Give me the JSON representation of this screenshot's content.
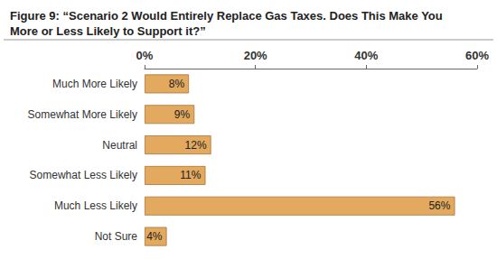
{
  "chart_data": {
    "type": "bar",
    "orientation": "horizontal",
    "title": "Figure 9: “Scenario 2 Would Entirely Replace Gas Taxes. Does This Make You More or Less Likely to Support it?”",
    "categories": [
      "Much More Likely",
      "Somewhat More Likely",
      "Neutral",
      "Somewhat Less Likely",
      "Much Less Likely",
      "Not Sure"
    ],
    "values": [
      8,
      9,
      12,
      11,
      56,
      4
    ],
    "value_labels": [
      "8%",
      "9%",
      "12%",
      "11%",
      "56%",
      "4%"
    ],
    "color": "#e2a95f",
    "xlim": [
      0,
      60
    ],
    "xticks": [
      {
        "value": 0,
        "label": "0%"
      },
      {
        "value": 20,
        "label": "20%"
      },
      {
        "value": 40,
        "label": "40%"
      },
      {
        "value": 60,
        "label": "60%"
      }
    ],
    "grid": false,
    "data_labels": true
  }
}
